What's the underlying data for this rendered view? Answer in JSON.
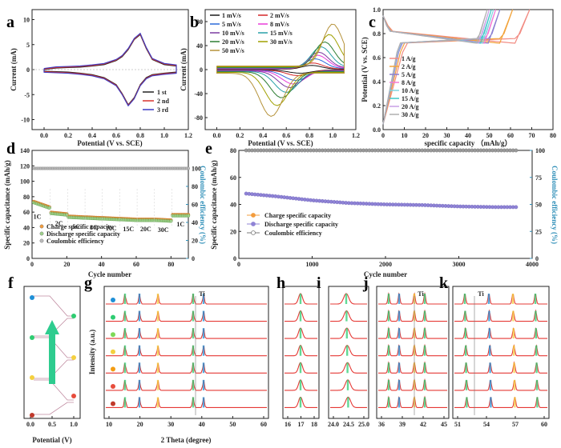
{
  "colors": {
    "a": [
      "#222222",
      "#d8332e",
      "#3b3bc4"
    ],
    "b": [
      "#1a1a1a",
      "#d62728",
      "#2a6ad9",
      "#e83cd9",
      "#7a3aa0",
      "#28a0a8",
      "#2e7d32",
      "#a0a000",
      "#b5923a"
    ],
    "c": [
      "#f28b82",
      "#f2a33a",
      "#8a7fd1",
      "#f27ad6",
      "#7fd6e0",
      "#3fc8c8",
      "#c9a0e6",
      "#b0b0b0"
    ],
    "d_charge": "#f39c3d",
    "d_discharge": "#9dd08a",
    "d_ce": "#7a7a7a",
    "e_charge": "#f39c3d",
    "e_discharge": "#8f83d6",
    "e_ce": "#7a7a7a",
    "red_axis": "#c0392b",
    "teal_axis": "#2f8fb8",
    "arrow": "#2ecc8f",
    "xrd_line": "#e53935",
    "xrd_stack": [
      "#e53935",
      "#e53935",
      "#e53935",
      "#e53935",
      "#e53935",
      "#e53935",
      "#e53935"
    ],
    "f_dots": [
      "#1f8fd6",
      "#2ecc71",
      "#7ed957",
      "#f4d03f",
      "#f39c12",
      "#e74c3c",
      "#c0392b"
    ]
  },
  "panels": {
    "a": {
      "label": "a",
      "xlabel": "Potential (V vs. SCE)",
      "ylabel": "Current (mA)",
      "xticks": [
        "0.0",
        "0.2",
        "0.4",
        "0.6",
        "0.8",
        "1.0",
        "1.2"
      ],
      "yticks": [
        "10",
        "5",
        "0",
        "-5",
        "-10"
      ],
      "legend": [
        "1 st",
        "2 nd",
        "3 rd"
      ]
    },
    "b": {
      "label": "b",
      "xlabel": "Potential (V vs. SCE)",
      "ylabel": "Current (mA)",
      "xticks": [
        "0.0",
        "0.2",
        "0.4",
        "0.6",
        "0.8",
        "1.0",
        "1.2"
      ],
      "yticks": [
        "80",
        "40",
        "0",
        "-40",
        "-80"
      ],
      "legend": [
        "1 mV/s",
        "2 mV/s",
        "5 mV/s",
        "8 mV/s",
        "10 mV/s",
        "15 mV/s",
        "20 mV/s",
        "30 mV/s",
        "50 mV/s"
      ]
    },
    "c": {
      "label": "c",
      "xlabel": "specific capacity （mAh/g）",
      "ylabel": "Potential (V vs. SCE)",
      "xticks": [
        "0",
        "10",
        "20",
        "30",
        "40",
        "50",
        "60",
        "70",
        "80"
      ],
      "yticks": [
        "1.0",
        "0.8",
        "0.6",
        "0.4",
        "0.2",
        "0.0"
      ],
      "legend": [
        "1 A/g",
        "2 A/g",
        "5 A/g",
        "8 A/g",
        "10 A/g",
        "15 A/g",
        "20 A/g",
        "30 A/g"
      ]
    },
    "d": {
      "label": "d",
      "xlabel": "Cycle number",
      "ylabel": "Specific capacitance (mAh/g)",
      "ylabel2": "Coulombic efficiency (%)",
      "xticks": [
        "0",
        "20",
        "40",
        "60",
        "80"
      ],
      "yticks": [
        "140",
        "120",
        "100",
        "80",
        "60",
        "40",
        "20",
        "0"
      ],
      "yticks2": [
        "100",
        "80",
        "60",
        "40",
        "20",
        "0"
      ],
      "rates": [
        "1C",
        "2C",
        "5C",
        "8C",
        "10C",
        "15C",
        "20C",
        "30C",
        "1C"
      ],
      "legend": [
        "Charge specific capacity",
        "Discharge specific capacity",
        "Coulombic efficiency"
      ]
    },
    "e": {
      "label": "e",
      "xlabel": "Cycle number",
      "ylabel": "Specific capacitance (mAh/g)",
      "ylabel2": "Coulombic efficiency (%)",
      "xticks": [
        "0",
        "1000",
        "2000",
        "3000",
        "4000"
      ],
      "yticks": [
        "80",
        "60",
        "40",
        "20",
        "0"
      ],
      "yticks2": [
        "100",
        "75",
        "50",
        "25",
        "0"
      ],
      "legend": [
        "Charge specific capacity",
        "Discharge specific capacity",
        "Coulombic efficiency"
      ]
    },
    "f": {
      "label": "f",
      "xlabel": "Potential (V)",
      "xticks": [
        "0.0",
        "0.5",
        "1.0"
      ]
    },
    "g": {
      "label": "g",
      "xlabel": "2 Theta (degree)",
      "ylabel": "Intensity (a.u.)",
      "xticks": [
        "10",
        "20",
        "30",
        "40",
        "50",
        "60"
      ],
      "ti": "Ti"
    },
    "h": {
      "label": "h",
      "xticks": [
        "16",
        "17",
        "18"
      ]
    },
    "i": {
      "label": "i",
      "xticks": [
        "24.0",
        "24.5",
        "25.0"
      ]
    },
    "j": {
      "label": "j",
      "xticks": [
        "36",
        "39",
        "42",
        "45"
      ],
      "ti": "Ti"
    },
    "k": {
      "label": "k",
      "xticks": [
        "51",
        "54",
        "57",
        "60"
      ],
      "ti": "Ti"
    }
  },
  "chart_data": [
    {
      "type": "line",
      "panel": "a",
      "xlabel": "Potential (V vs. SCE)",
      "ylabel": "Current (mA)",
      "xlim": [
        -0.1,
        1.2
      ],
      "ylim": [
        -12,
        12
      ],
      "series": [
        {
          "name": "1 st"
        },
        {
          "name": "2 nd"
        },
        {
          "name": "3 rd"
        }
      ],
      "x": [
        0.0,
        0.1,
        0.2,
        0.3,
        0.4,
        0.5,
        0.6,
        0.65,
        0.7,
        0.75,
        0.8,
        0.85,
        0.9,
        1.0,
        1.1
      ],
      "anodic": [
        0.0,
        0.3,
        0.4,
        0.5,
        0.7,
        1.0,
        1.8,
        2.6,
        4.0,
        6.0,
        7.0,
        4.2,
        2.0,
        1.0,
        0.7
      ],
      "cathodic": [
        -0.3,
        -0.4,
        -0.5,
        -0.7,
        -1.0,
        -1.6,
        -3.0,
        -4.8,
        -7.0,
        -5.6,
        -3.0,
        -1.6,
        -1.0,
        -0.7,
        -0.5
      ]
    },
    {
      "type": "line",
      "panel": "b",
      "xlabel": "Potential (V vs. SCE)",
      "ylabel": "Current (mA)",
      "xlim": [
        -0.1,
        1.2
      ],
      "ylim": [
        -100,
        100
      ],
      "series": [
        {
          "name": "1 mV/s",
          "anodic_peak": [
            0.82,
            7
          ],
          "cathodic_peak": [
            0.72,
            -6
          ]
        },
        {
          "name": "2 mV/s",
          "anodic_peak": [
            0.83,
            11
          ],
          "cathodic_peak": [
            0.7,
            -10
          ]
        },
        {
          "name": "5 mV/s",
          "anodic_peak": [
            0.85,
            18
          ],
          "cathodic_peak": [
            0.68,
            -18
          ]
        },
        {
          "name": "8 mV/s",
          "anodic_peak": [
            0.87,
            24
          ],
          "cathodic_peak": [
            0.66,
            -24
          ]
        },
        {
          "name": "10 mV/s",
          "anodic_peak": [
            0.88,
            29
          ],
          "cathodic_peak": [
            0.63,
            -30
          ]
        },
        {
          "name": "15 mV/s",
          "anodic_peak": [
            0.9,
            38
          ],
          "cathodic_peak": [
            0.6,
            -38
          ]
        },
        {
          "name": "20 mV/s",
          "anodic_peak": [
            0.93,
            46
          ],
          "cathodic_peak": [
            0.56,
            -47
          ]
        },
        {
          "name": "30 mV/s",
          "anodic_peak": [
            0.97,
            58
          ],
          "cathodic_peak": [
            0.52,
            -60
          ]
        },
        {
          "name": "50 mV/s",
          "anodic_peak": [
            1.0,
            75
          ],
          "cathodic_peak": [
            0.47,
            -78
          ]
        }
      ]
    },
    {
      "type": "line",
      "panel": "c",
      "xlabel": "specific capacity （mAh/g）",
      "ylabel": "Potential (V vs. SCE)",
      "xlim": [
        0,
        80
      ],
      "ylim": [
        0,
        1.0
      ],
      "series": [
        {
          "name": "1 A/g",
          "capacity": 69
        },
        {
          "name": "2 A/g",
          "capacity": 61
        },
        {
          "name": "5 A/g",
          "capacity": 55
        },
        {
          "name": "8 A/g",
          "capacity": 53
        },
        {
          "name": "10 A/g",
          "capacity": 52
        },
        {
          "name": "15 A/g",
          "capacity": 51
        },
        {
          "name": "20 A/g",
          "capacity": 50
        },
        {
          "name": "30 A/g",
          "capacity": 49
        }
      ]
    },
    {
      "type": "scatter",
      "panel": "d",
      "xlabel": "Cycle number",
      "ylabel": "Specific capacitance (mAh/g)",
      "ylabel2": "Coulombic efficiency (%)",
      "xlim": [
        0,
        90
      ],
      "ylim": [
        0,
        140
      ],
      "ylim2": [
        0,
        120
      ],
      "rate_steps": [
        {
          "label": "1C",
          "cycles": [
            1,
            10
          ],
          "capacity": [
            73,
            66
          ]
        },
        {
          "label": "2C",
          "cycles": [
            11,
            20
          ],
          "capacity": [
            59,
            57
          ]
        },
        {
          "label": "5C",
          "cycles": [
            21,
            30
          ],
          "capacity": [
            54,
            53
          ]
        },
        {
          "label": "8C",
          "cycles": [
            31,
            40
          ],
          "capacity": [
            53,
            52
          ]
        },
        {
          "label": "10C",
          "cycles": [
            41,
            50
          ],
          "capacity": [
            52,
            51
          ]
        },
        {
          "label": "15C",
          "cycles": [
            51,
            60
          ],
          "capacity": [
            51,
            50
          ]
        },
        {
          "label": "20C",
          "cycles": [
            61,
            70
          ],
          "capacity": [
            50,
            50
          ]
        },
        {
          "label": "30C",
          "cycles": [
            71,
            80
          ],
          "capacity": [
            50,
            49
          ]
        },
        {
          "label": "1C",
          "cycles": [
            81,
            90
          ],
          "capacity": [
            56,
            56
          ]
        }
      ],
      "coulombic_efficiency": 100,
      "series": [
        {
          "name": "Charge specific capacity"
        },
        {
          "name": "Discharge specific capacity"
        },
        {
          "name": "Coulombic efficiency"
        }
      ]
    },
    {
      "type": "scatter",
      "panel": "e",
      "xlabel": "Cycle number",
      "ylabel": "Specific capacitance (mAh/g)",
      "ylabel2": "Coulombic efficiency (%)",
      "xlim": [
        0,
        4000
      ],
      "ylim": [
        0,
        80
      ],
      "ylim2": [
        0,
        100
      ],
      "x": [
        100,
        500,
        1000,
        1500,
        2000,
        2500,
        3000,
        3500,
        3800
      ],
      "capacity": [
        48,
        46,
        43,
        41,
        40,
        39.5,
        38.5,
        38,
        38
      ],
      "coulombic_efficiency": 100,
      "series": [
        {
          "name": "Charge specific capacity"
        },
        {
          "name": "Discharge specific capacity"
        },
        {
          "name": "Coulombic efficiency"
        }
      ]
    },
    {
      "type": "line",
      "panel": "g",
      "xlabel": "2 Theta (degree)",
      "ylabel": "Intensity (a.u.)",
      "xlim": [
        10,
        60
      ],
      "traces": 7,
      "peaks_2theta": [
        16.9,
        20.1,
        24.5,
        34.0,
        36.2,
        38.4,
        40.2,
        52.5
      ]
    }
  ]
}
